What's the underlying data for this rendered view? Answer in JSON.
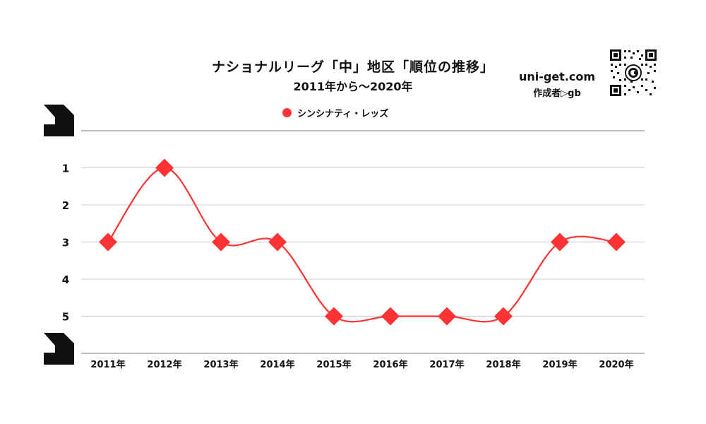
{
  "header": {
    "title": "ナショナルリーグ「中」地区「順位の推移」",
    "subtitle": "2011年から～2020年",
    "site": "uni-get.com",
    "author": "作成者▷gb"
  },
  "icons": {
    "qr_code": "qr-code-icon",
    "top_rank_marker": "rank-top-marker-icon",
    "bottom_rank_marker": "rank-bottom-marker-icon"
  },
  "colors": {
    "series": "#ff3333",
    "grid": "#cccccc",
    "axis_top": "#999999",
    "text": "#111111"
  },
  "chart_data": {
    "type": "line",
    "title": "ナショナルリーグ「中」地区「順位の推移」",
    "subtitle": "2011年から～2020年",
    "xlabel": "",
    "ylabel": "",
    "x": [
      "2011年",
      "2012年",
      "2013年",
      "2014年",
      "2015年",
      "2016年",
      "2017年",
      "2018年",
      "2019年",
      "2020年"
    ],
    "y_ticks": [
      "1",
      "2",
      "3",
      "4",
      "5"
    ],
    "ylim": [
      0,
      6
    ],
    "y_reversed": true,
    "grid": true,
    "legend_position": "top-center",
    "smooth": true,
    "marker": "diamond",
    "series": [
      {
        "name": "シンシナティ・レッズ",
        "color": "#ff3333",
        "values": [
          3,
          1,
          3,
          3,
          5,
          5,
          5,
          5,
          3,
          3
        ]
      }
    ]
  }
}
